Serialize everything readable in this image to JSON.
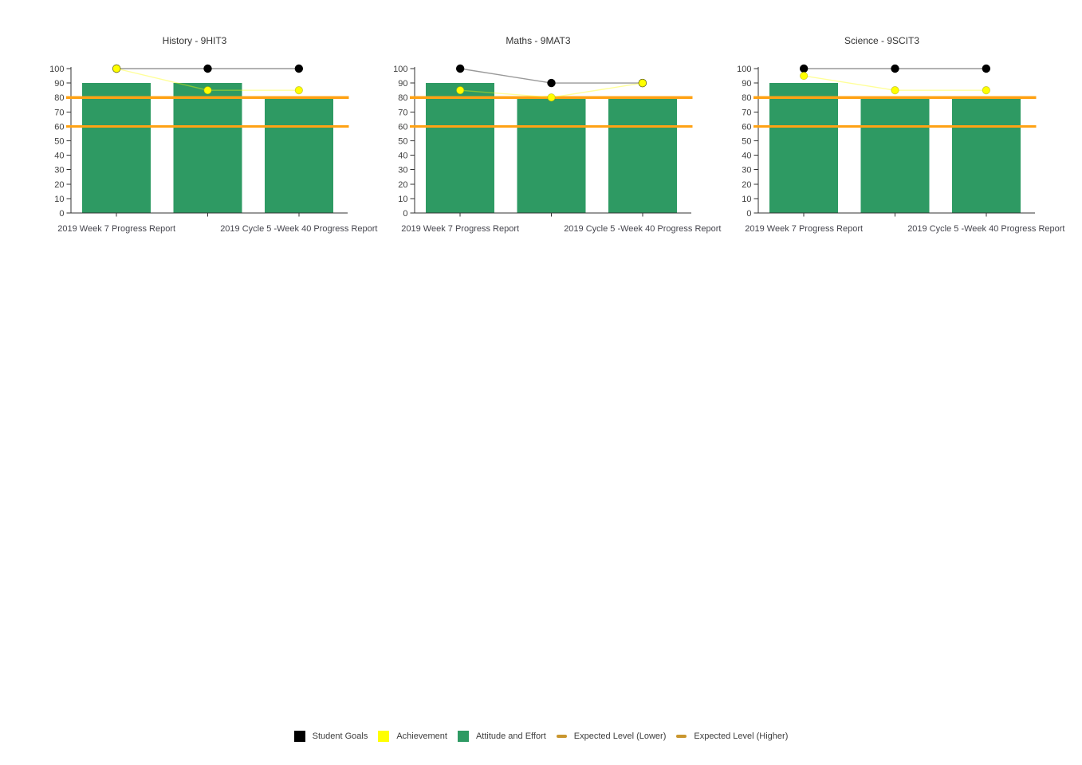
{
  "page": {
    "background": "#FFFFFF"
  },
  "chart_data": [
    {
      "type": "bar",
      "title": "History - 9HIT3",
      "ylim": [
        0,
        100
      ],
      "y_ticks": [
        0,
        10,
        20,
        30,
        40,
        50,
        60,
        70,
        80,
        90,
        100
      ],
      "grid": false,
      "legend_position": "shared-bottom",
      "n_slots": 3,
      "x_tick_labels": [
        {
          "slot": 0,
          "text": "2019 Week 7 Progress Report"
        },
        {
          "slot": 2,
          "text": "2019 Cycle 5 -Week 40 Progress Report"
        }
      ],
      "series": [
        {
          "name": "Attitude and Effort",
          "type": "bar",
          "values": [
            90,
            90,
            80
          ]
        },
        {
          "name": "Student Goals",
          "type": "line",
          "values": [
            100,
            100,
            100
          ]
        },
        {
          "name": "Achievement",
          "type": "line",
          "values": [
            100,
            85,
            85
          ]
        },
        {
          "name": "Expected Level (Lower)",
          "type": "hline",
          "value": 60
        },
        {
          "name": "Expected Level (Higher)",
          "type": "hline",
          "value": 80
        }
      ]
    },
    {
      "type": "bar",
      "title": "Maths - 9MAT3",
      "ylim": [
        0,
        100
      ],
      "y_ticks": [
        0,
        10,
        20,
        30,
        40,
        50,
        60,
        70,
        80,
        90,
        100
      ],
      "grid": false,
      "legend_position": "shared-bottom",
      "n_slots": 3,
      "x_tick_labels": [
        {
          "slot": 0,
          "text": "2019 Week 7 Progress Report"
        },
        {
          "slot": 2,
          "text": "2019 Cycle 5 -Week 40 Progress Report"
        }
      ],
      "series": [
        {
          "name": "Attitude and Effort",
          "type": "bar",
          "values": [
            90,
            80,
            80
          ]
        },
        {
          "name": "Student Goals",
          "type": "line",
          "values": [
            100,
            90,
            90
          ]
        },
        {
          "name": "Achievement",
          "type": "line",
          "values": [
            85,
            80,
            90
          ]
        },
        {
          "name": "Expected Level (Lower)",
          "type": "hline",
          "value": 60
        },
        {
          "name": "Expected Level (Higher)",
          "type": "hline",
          "value": 80
        }
      ]
    },
    {
      "type": "bar",
      "title": "Science - 9SCIT3",
      "ylim": [
        0,
        100
      ],
      "y_ticks": [
        0,
        10,
        20,
        30,
        40,
        50,
        60,
        70,
        80,
        90,
        100
      ],
      "grid": false,
      "legend_position": "shared-bottom",
      "n_slots": 3,
      "x_tick_labels": [
        {
          "slot": 0,
          "text": "2019 Week 7 Progress Report"
        },
        {
          "slot": 2,
          "text": "2019 Cycle 5 -Week 40 Progress Report"
        }
      ],
      "series": [
        {
          "name": "Attitude and Effort",
          "type": "bar",
          "values": [
            90,
            80,
            80
          ]
        },
        {
          "name": "Student Goals",
          "type": "line",
          "values": [
            100,
            100,
            100
          ]
        },
        {
          "name": "Achievement",
          "type": "line",
          "values": [
            95,
            85,
            85
          ]
        },
        {
          "name": "Expected Level (Lower)",
          "type": "hline",
          "value": 60
        },
        {
          "name": "Expected Level (Higher)",
          "type": "hline",
          "value": 80
        }
      ]
    }
  ],
  "colors": {
    "attitude_effort_bar": "#2E9A63",
    "student_goals_marker": "#000000",
    "student_goals_line": "#999999",
    "achievement_marker": "#FFFF00",
    "achievement_marker_rim": "rgba(160,160,0,0.55)",
    "achievement_line": "rgba(255,255,0,0.40)",
    "expected_level_line": "#FFA214",
    "legend_dash": "#C9962E",
    "axis": "#333333",
    "text": "#404040"
  },
  "legend": {
    "items": [
      {
        "label": "Student Goals",
        "swatch": "square",
        "color": "#000000"
      },
      {
        "label": "Achievement",
        "swatch": "square",
        "color": "#FFFF00"
      },
      {
        "label": "Attitude and Effort",
        "swatch": "square",
        "color": "#2E9A63"
      },
      {
        "label": "Expected Level (Lower)",
        "swatch": "dash",
        "color": "#C9962E"
      },
      {
        "label": "Expected Level (Higher)",
        "swatch": "dash",
        "color": "#C9962E"
      }
    ]
  }
}
